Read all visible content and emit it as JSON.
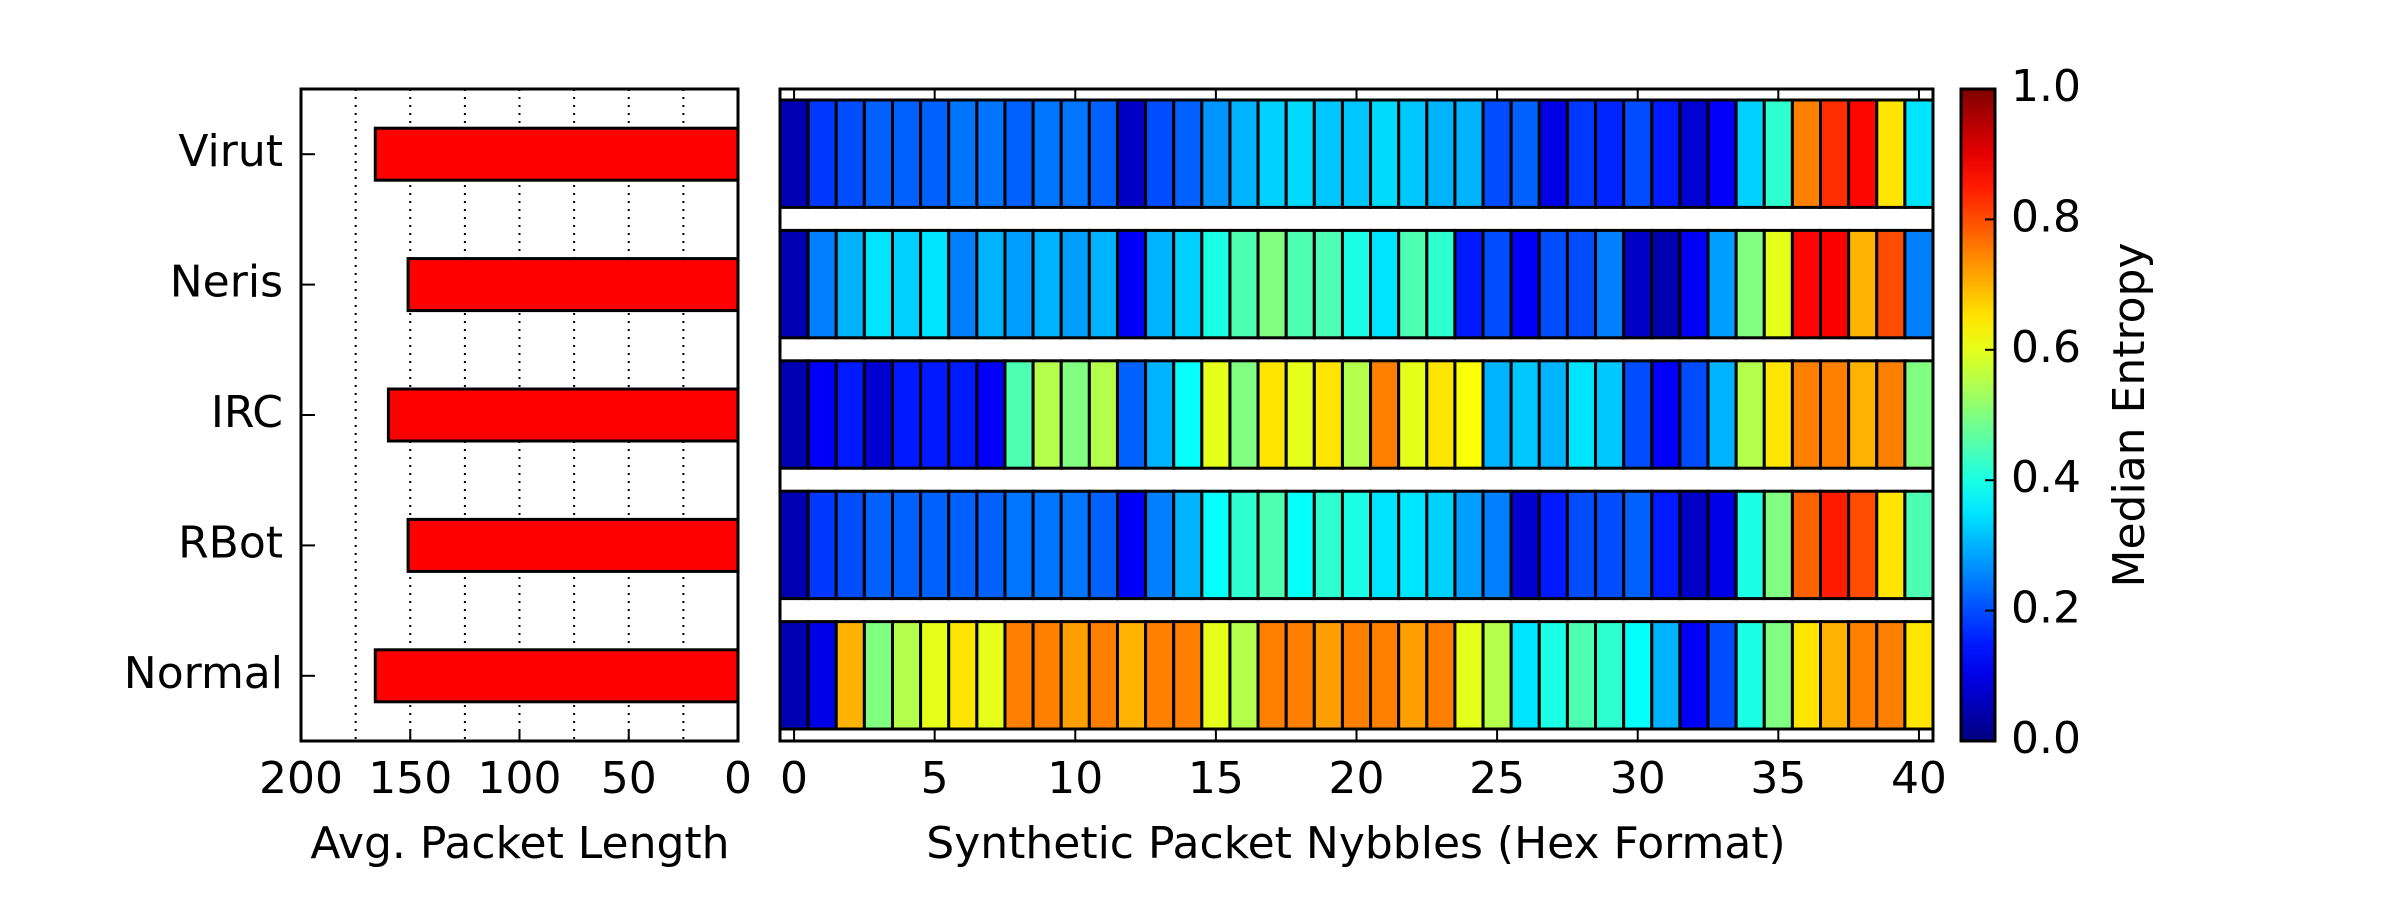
{
  "chart_data": [
    {
      "type": "barh",
      "xlabel": "Avg. Packet Length",
      "categories": [
        "Virut",
        "Neris",
        "IRC",
        "RBot",
        "Normal"
      ],
      "values": [
        166,
        151,
        160,
        151,
        166
      ],
      "color": "#ff0000",
      "xlim": [
        200,
        0
      ],
      "xticks": [
        200,
        150,
        100,
        50,
        0
      ],
      "xminorticks": [
        175,
        125,
        75,
        25
      ],
      "grid": "dotted"
    },
    {
      "type": "heatmap",
      "xlabel": "Synthetic Packet Nybbles (Hex Format)",
      "xlim": [
        -0.5,
        40.5
      ],
      "xticks": [
        0,
        5,
        10,
        15,
        20,
        25,
        30,
        35,
        40
      ],
      "colormap": "jet",
      "z": [
        [
          0.05,
          0.18,
          0.2,
          0.22,
          0.22,
          0.22,
          0.24,
          0.24,
          0.22,
          0.24,
          0.24,
          0.22,
          0.07,
          0.2,
          0.22,
          0.27,
          0.3,
          0.33,
          0.34,
          0.32,
          0.32,
          0.34,
          0.32,
          0.3,
          0.3,
          0.2,
          0.22,
          0.1,
          0.18,
          0.16,
          0.2,
          0.15,
          0.08,
          0.12,
          0.33,
          0.42,
          0.75,
          0.83,
          0.87,
          0.65,
          0.35
        ],
        [
          0.05,
          0.25,
          0.3,
          0.35,
          0.33,
          0.35,
          0.25,
          0.3,
          0.28,
          0.3,
          0.28,
          0.3,
          0.12,
          0.3,
          0.33,
          0.4,
          0.45,
          0.5,
          0.45,
          0.45,
          0.4,
          0.35,
          0.45,
          0.42,
          0.15,
          0.2,
          0.12,
          0.2,
          0.2,
          0.25,
          0.07,
          0.05,
          0.12,
          0.28,
          0.5,
          0.6,
          0.87,
          0.88,
          0.7,
          0.8,
          0.25
        ],
        [
          0.05,
          0.12,
          0.15,
          0.08,
          0.15,
          0.15,
          0.15,
          0.12,
          0.45,
          0.55,
          0.5,
          0.55,
          0.22,
          0.3,
          0.38,
          0.6,
          0.5,
          0.65,
          0.6,
          0.65,
          0.55,
          0.75,
          0.6,
          0.65,
          0.62,
          0.3,
          0.32,
          0.3,
          0.35,
          0.32,
          0.2,
          0.12,
          0.2,
          0.3,
          0.55,
          0.65,
          0.75,
          0.75,
          0.7,
          0.75,
          0.5
        ],
        [
          0.05,
          0.18,
          0.2,
          0.22,
          0.22,
          0.22,
          0.22,
          0.22,
          0.24,
          0.24,
          0.24,
          0.22,
          0.12,
          0.25,
          0.3,
          0.38,
          0.42,
          0.45,
          0.38,
          0.42,
          0.4,
          0.35,
          0.35,
          0.33,
          0.28,
          0.25,
          0.08,
          0.15,
          0.2,
          0.2,
          0.22,
          0.15,
          0.07,
          0.1,
          0.4,
          0.5,
          0.78,
          0.85,
          0.8,
          0.65,
          0.45
        ],
        [
          0.05,
          0.1,
          0.7,
          0.5,
          0.55,
          0.6,
          0.65,
          0.6,
          0.75,
          0.75,
          0.72,
          0.75,
          0.7,
          0.75,
          0.75,
          0.6,
          0.55,
          0.75,
          0.75,
          0.72,
          0.75,
          0.75,
          0.72,
          0.75,
          0.6,
          0.55,
          0.35,
          0.4,
          0.45,
          0.42,
          0.38,
          0.3,
          0.12,
          0.2,
          0.4,
          0.5,
          0.65,
          0.7,
          0.75,
          0.75,
          0.65
        ]
      ],
      "colorbar": {
        "label": "Median Entropy",
        "clim": [
          0,
          1
        ],
        "ticks": [
          {
            "value": 0,
            "label": "0.0"
          },
          {
            "value": 0.2,
            "label": "0.2"
          },
          {
            "value": 0.4,
            "label": "0.4"
          },
          {
            "value": 0.6,
            "label": "0.6"
          },
          {
            "value": 0.8,
            "label": "0.8"
          },
          {
            "value": 1,
            "label": "1.0"
          }
        ]
      }
    }
  ]
}
